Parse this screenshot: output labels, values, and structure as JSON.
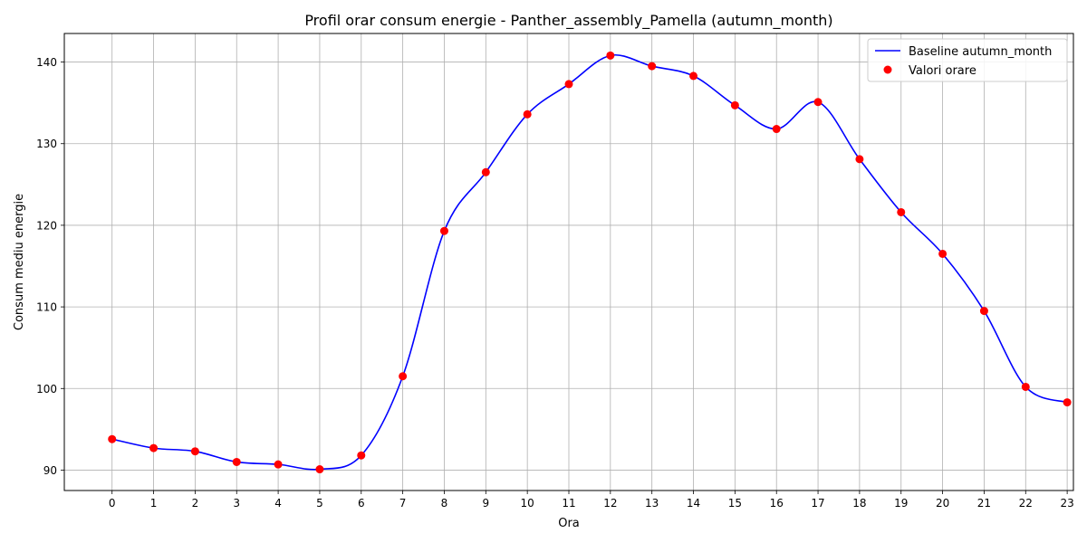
{
  "chart_data": {
    "type": "line",
    "title": "Profil orar consum energie - Panther_assembly_Pamella (autumn_month)",
    "xlabel": "Ora",
    "ylabel": "Consum mediu energie",
    "x": [
      0,
      1,
      2,
      3,
      4,
      5,
      6,
      7,
      8,
      9,
      10,
      11,
      12,
      13,
      14,
      15,
      16,
      17,
      18,
      19,
      20,
      21,
      22,
      23
    ],
    "x_ticks": [
      "0",
      "1",
      "2",
      "3",
      "4",
      "5",
      "6",
      "7",
      "8",
      "9",
      "10",
      "11",
      "12",
      "13",
      "14",
      "15",
      "16",
      "17",
      "18",
      "19",
      "20",
      "21",
      "22",
      "23"
    ],
    "y_ticks": [
      "90",
      "100",
      "110",
      "120",
      "130",
      "140"
    ],
    "xlim": [
      -1.15,
      23.15
    ],
    "ylim": [
      87.5,
      143.5
    ],
    "grid": true,
    "legend_position": "top-right",
    "series": [
      {
        "name": "Baseline autumn_month",
        "kind": "smooth-line",
        "color": "#0000ff",
        "values": [
          93.8,
          92.7,
          92.3,
          91.0,
          90.7,
          90.1,
          91.8,
          101.5,
          119.3,
          126.5,
          133.6,
          137.3,
          140.8,
          139.5,
          138.3,
          134.7,
          131.8,
          135.1,
          128.1,
          121.6,
          116.5,
          109.5,
          100.2,
          98.3
        ]
      },
      {
        "name": "Valori orare",
        "kind": "scatter",
        "color": "#ff0000",
        "values": [
          93.8,
          92.7,
          92.3,
          91.0,
          90.7,
          90.1,
          91.8,
          101.5,
          119.3,
          126.5,
          133.6,
          137.3,
          140.8,
          139.5,
          138.3,
          134.7,
          131.8,
          135.1,
          128.1,
          121.6,
          116.5,
          109.5,
          100.2,
          98.3
        ]
      }
    ]
  }
}
